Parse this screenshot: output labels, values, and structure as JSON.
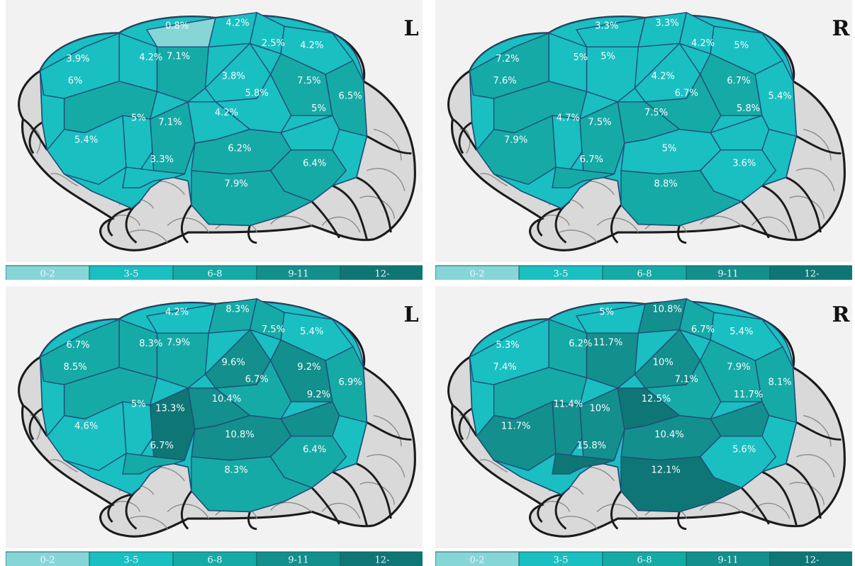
{
  "palette": {
    "bin_colors": [
      "#86d6d8",
      "#1abfc2",
      "#16aaa6",
      "#138f8d",
      "#0f7676"
    ],
    "background": "#f2f2f2",
    "brain_shading": "#d9d9d9"
  },
  "legend": [
    "0-2",
    "3-5",
    "6-8",
    "9-11",
    "12-"
  ],
  "panels": [
    {
      "side": "L",
      "values": [
        "0.8%",
        "4.2%",
        "2.5%",
        "4.2%",
        "3.9%",
        "4.2%",
        "7.1%",
        "6%",
        "3.8%",
        "7.5%",
        "5.8%",
        "6.5%",
        "5%",
        "7.1%",
        "4.2%",
        "5%",
        "5.4%",
        "6.2%",
        "3.3%",
        "6.4%",
        "7.9%"
      ]
    },
    {
      "side": "R",
      "values": [
        "3.3%",
        "3.3%",
        "4.2%",
        "5%",
        "7.2%",
        "5%",
        "5%",
        "7.6%",
        "4.2%",
        "6.7%",
        "6.7%",
        "5.4%",
        "4.7%",
        "7.5%",
        "7.5%",
        "5.8%",
        "7.9%",
        "5%",
        "6.7%",
        "3.6%",
        "8.8%"
      ]
    },
    {
      "side": "L",
      "values": [
        "4.2%",
        "8.3%",
        "7.5%",
        "5.4%",
        "6.7%",
        "8.3%",
        "7.9%",
        "8.5%",
        "9.6%",
        "9.2%",
        "6.7%",
        "6.9%",
        "5%",
        "13.3%",
        "10.4%",
        "9.2%",
        "4.6%",
        "10.8%",
        "6.7%",
        "6.4%",
        "8.3%"
      ]
    },
    {
      "side": "R",
      "values": [
        "5%",
        "10.8%",
        "6.7%",
        "5.4%",
        "5.3%",
        "6.2%",
        "11.7%",
        "7.4%",
        "10%",
        "7.9%",
        "7.1%",
        "8.1%",
        "11.4%",
        "10%",
        "12.5%",
        "11.7%",
        "11.7%",
        "10.4%",
        "15.8%",
        "5.6%",
        "12.1%"
      ]
    }
  ]
}
